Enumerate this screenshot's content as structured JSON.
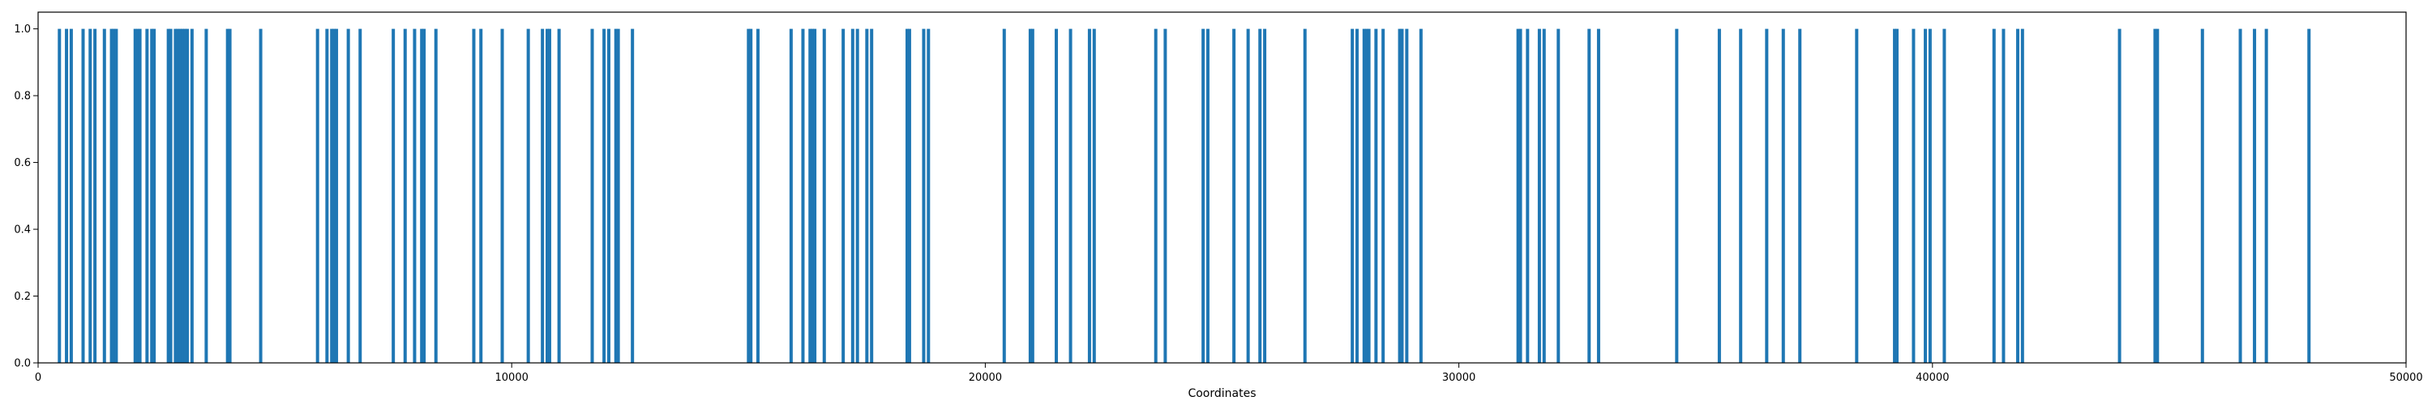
{
  "chart_data": {
    "type": "bar",
    "title": "",
    "xlabel": "Coordinates",
    "ylabel": "",
    "xlim": [
      0,
      50000
    ],
    "ylim": [
      0.0,
      1.05
    ],
    "x_ticks": [
      0,
      10000,
      20000,
      30000,
      40000,
      50000
    ],
    "x_tick_labels": [
      "0",
      "10000",
      "20000",
      "30000",
      "40000",
      "50000"
    ],
    "y_ticks": [
      0.0,
      0.2,
      0.4,
      0.6,
      0.8,
      1.0
    ],
    "y_tick_labels": [
      "0.0",
      "0.2",
      "0.4",
      "0.6",
      "0.8",
      "1.0"
    ],
    "grid": false,
    "legend": "none",
    "bar_color": "#1f77b4",
    "bar_value": 1.0,
    "x": [
      450,
      600,
      700,
      950,
      1100,
      1200,
      1400,
      1550,
      1600,
      1650,
      2050,
      2100,
      2150,
      2300,
      2400,
      2450,
      2750,
      2800,
      2900,
      2950,
      3000,
      3050,
      3100,
      3150,
      3250,
      3550,
      4000,
      4050,
      4700,
      5900,
      6100,
      6200,
      6250,
      6300,
      6550,
      6800,
      7500,
      7750,
      7950,
      8100,
      8150,
      8400,
      9200,
      9350,
      9800,
      10350,
      10650,
      10750,
      10800,
      11000,
      11700,
      11950,
      12050,
      12200,
      12250,
      12550,
      15000,
      15050,
      15200,
      15900,
      16150,
      16300,
      16350,
      16400,
      16600,
      17000,
      17200,
      17300,
      17500,
      17600,
      18350,
      18400,
      18700,
      18800,
      20400,
      20950,
      21000,
      21500,
      21800,
      22200,
      22300,
      23600,
      23800,
      24600,
      24700,
      25250,
      25550,
      25800,
      25900,
      26750,
      27750,
      27850,
      28000,
      28050,
      28100,
      28250,
      28400,
      28750,
      28800,
      28900,
      29200,
      31250,
      31300,
      31450,
      31700,
      31800,
      32100,
      32750,
      32950,
      34600,
      35500,
      35950,
      36500,
      36850,
      37200,
      38400,
      39200,
      39250,
      39600,
      39850,
      39950,
      40250,
      41300,
      41500,
      41800,
      41900,
      43950,
      44700,
      44750,
      45700,
      46500,
      46800,
      47050,
      47950
    ]
  }
}
